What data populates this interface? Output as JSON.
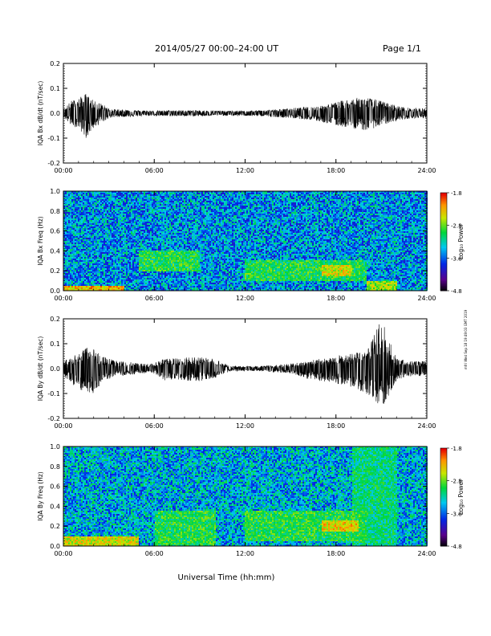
{
  "header": {
    "title": "2014/05/27  00:00–24:00 UT",
    "page": "Page 1/1"
  },
  "side_stamp": "mfri Wed Sep 18 19:49:03 GMT 2019",
  "chart_data": [
    {
      "type": "line",
      "ylabel": "IQA Bx dB/dt (nT/sec)",
      "xlabel": "",
      "xlim": [
        0,
        24
      ],
      "ylim": [
        -0.2,
        0.2
      ],
      "xticks": [
        "00:00",
        "06:00",
        "12:00",
        "18:00",
        "24:00"
      ],
      "yticks": [
        "-0.2",
        "-0.1",
        "0.0",
        "0.1",
        "0.2"
      ],
      "envelope": {
        "x": [
          0,
          0.5,
          1,
          1.5,
          2,
          2.5,
          3,
          3.5,
          4,
          5,
          6,
          7,
          8,
          9,
          10,
          11,
          12,
          13,
          14,
          15,
          16,
          17,
          18,
          19,
          20,
          21,
          22,
          23,
          24
        ],
        "upper": [
          0.015,
          0.05,
          0.06,
          0.08,
          0.05,
          0.04,
          0.02,
          0.015,
          0.015,
          0.012,
          0.01,
          0.012,
          0.012,
          0.012,
          0.01,
          0.01,
          0.01,
          0.012,
          0.015,
          0.02,
          0.025,
          0.03,
          0.045,
          0.06,
          0.065,
          0.05,
          0.03,
          0.02,
          0.02
        ],
        "lower": [
          -0.015,
          -0.05,
          -0.06,
          -0.1,
          -0.06,
          -0.04,
          -0.02,
          -0.015,
          -0.015,
          -0.012,
          -0.01,
          -0.012,
          -0.012,
          -0.012,
          -0.01,
          -0.01,
          -0.01,
          -0.012,
          -0.015,
          -0.02,
          -0.025,
          -0.035,
          -0.05,
          -0.06,
          -0.07,
          -0.05,
          -0.03,
          -0.02,
          -0.02
        ]
      }
    },
    {
      "type": "heatmap",
      "ylabel": "IQA Bx Freq (Hz)",
      "colorbar_label": "Log₁₀ Power",
      "colorbar_ticks": [
        "-1.8",
        "-2.8",
        "-3.8",
        "-4.8"
      ],
      "clim": [
        -4.8,
        -1.8
      ],
      "xlim": [
        0,
        24
      ],
      "ylim": [
        0.0,
        1.0
      ],
      "xticks": [
        "00:00",
        "06:00",
        "12:00",
        "18:00",
        "24:00"
      ],
      "yticks": [
        "0.0",
        "0.2",
        "0.4",
        "0.6",
        "0.8",
        "1.0"
      ],
      "background_power": -3.6,
      "features": [
        {
          "t0": 0,
          "t1": 4,
          "f0": 0.0,
          "f1": 0.05,
          "power": -2.3
        },
        {
          "t0": 5,
          "t1": 9,
          "f0": 0.2,
          "f1": 0.4,
          "power": -3.0
        },
        {
          "t0": 12,
          "t1": 20,
          "f0": 0.1,
          "f1": 0.3,
          "power": -3.0
        },
        {
          "t0": 17,
          "t1": 19,
          "f0": 0.15,
          "f1": 0.25,
          "power": -2.5
        },
        {
          "t0": 20,
          "t1": 22,
          "f0": 0.0,
          "f1": 0.1,
          "power": -2.7
        }
      ]
    },
    {
      "type": "line",
      "ylabel": "IQA By dB/dt (nT/sec)",
      "xlabel": "",
      "xlim": [
        0,
        24
      ],
      "ylim": [
        -0.2,
        0.2
      ],
      "xticks": [
        "00:00",
        "06:00",
        "12:00",
        "18:00",
        "24:00"
      ],
      "yticks": [
        "-0.2",
        "-0.1",
        "0.0",
        "0.1",
        "0.2"
      ],
      "envelope": {
        "x": [
          0,
          0.5,
          1,
          1.5,
          2,
          2.5,
          3,
          3.5,
          4,
          5,
          6,
          6.5,
          7,
          8,
          9,
          10,
          11,
          12,
          13,
          14,
          15,
          16,
          17,
          18,
          19,
          20,
          21,
          22,
          23,
          24
        ],
        "upper": [
          0.03,
          0.05,
          0.06,
          0.09,
          0.08,
          0.05,
          0.04,
          0.03,
          0.03,
          0.02,
          0.02,
          0.04,
          0.04,
          0.045,
          0.045,
          0.04,
          0.01,
          0.01,
          0.01,
          0.015,
          0.02,
          0.03,
          0.04,
          0.05,
          0.06,
          0.07,
          0.2,
          0.04,
          0.03,
          0.03
        ],
        "lower": [
          -0.03,
          -0.06,
          -0.08,
          -0.1,
          -0.1,
          -0.06,
          -0.04,
          -0.03,
          -0.03,
          -0.02,
          -0.02,
          -0.045,
          -0.05,
          -0.05,
          -0.05,
          -0.04,
          -0.01,
          -0.01,
          -0.01,
          -0.015,
          -0.02,
          -0.04,
          -0.05,
          -0.06,
          -0.08,
          -0.1,
          -0.16,
          -0.05,
          -0.03,
          -0.03
        ]
      }
    },
    {
      "type": "heatmap",
      "ylabel": "IQA By Freq (Hz)",
      "colorbar_label": "Log₁₀ Power",
      "colorbar_ticks": [
        "-1.8",
        "-2.8",
        "-3.8",
        "-4.8"
      ],
      "clim": [
        -4.8,
        -1.8
      ],
      "xlim": [
        0,
        24
      ],
      "ylim": [
        0.0,
        1.0
      ],
      "xticks": [
        "00:00",
        "06:00",
        "12:00",
        "18:00",
        "24:00"
      ],
      "yticks": [
        "0.0",
        "0.2",
        "0.4",
        "0.6",
        "0.8",
        "1.0"
      ],
      "background_power": -3.5,
      "features": [
        {
          "t0": 0,
          "t1": 5,
          "f0": 0.0,
          "f1": 0.1,
          "power": -2.5
        },
        {
          "t0": 6,
          "t1": 10,
          "f0": 0.0,
          "f1": 0.35,
          "power": -3.0
        },
        {
          "t0": 12,
          "t1": 20,
          "f0": 0.05,
          "f1": 0.35,
          "power": -3.0
        },
        {
          "t0": 17,
          "t1": 19.5,
          "f0": 0.15,
          "f1": 0.25,
          "power": -2.4
        },
        {
          "t0": 19,
          "t1": 22,
          "f0": 0.0,
          "f1": 1.0,
          "power": -3.2
        }
      ]
    }
  ],
  "xlabel_bottom": "Universal Time (hh:mm)"
}
